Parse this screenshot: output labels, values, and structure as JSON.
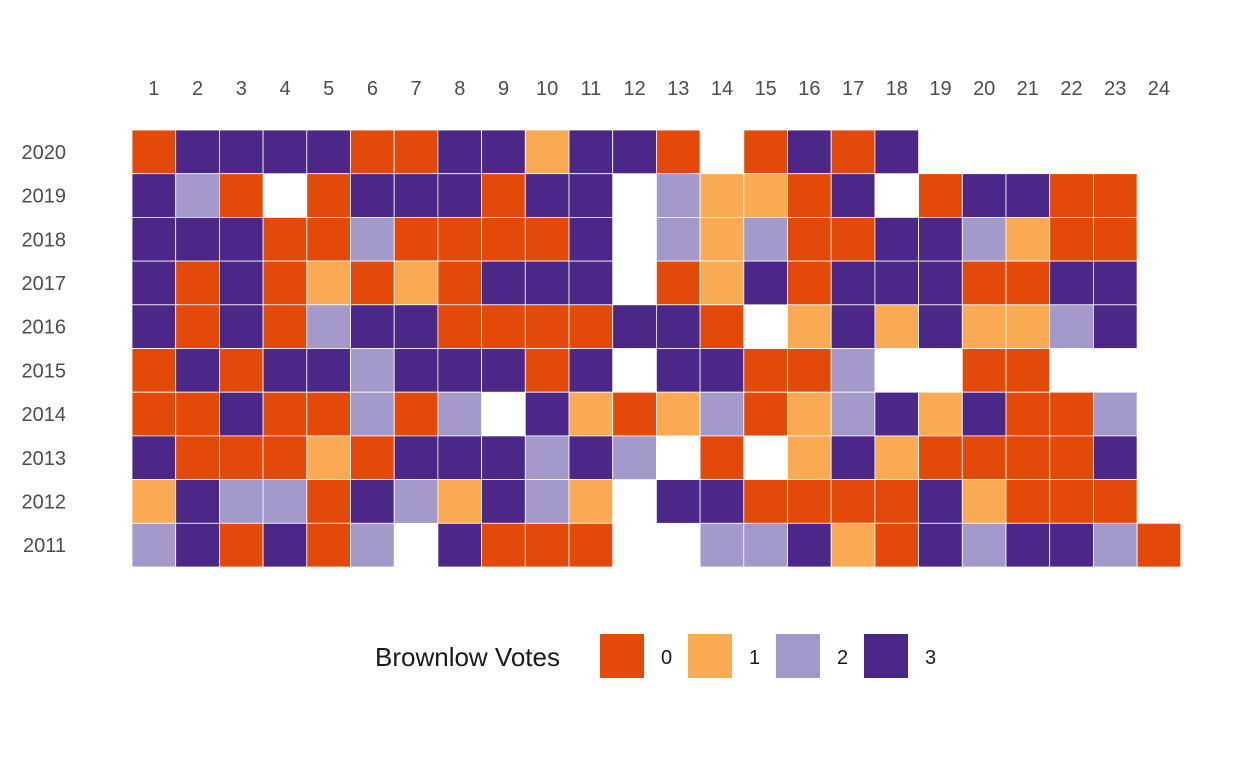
{
  "chart_data": {
    "type": "heatmap",
    "x_categories": [
      "1",
      "2",
      "3",
      "4",
      "5",
      "6",
      "7",
      "8",
      "9",
      "10",
      "11",
      "12",
      "13",
      "14",
      "15",
      "16",
      "17",
      "18",
      "19",
      "20",
      "21",
      "22",
      "23",
      "24"
    ],
    "y_categories": [
      "2020",
      "2019",
      "2018",
      "2017",
      "2016",
      "2015",
      "2014",
      "2013",
      "2012",
      "2011"
    ],
    "values": [
      [
        0,
        3,
        3,
        3,
        3,
        0,
        0,
        3,
        3,
        1,
        3,
        3,
        0,
        null,
        0,
        3,
        0,
        3,
        null,
        null,
        null,
        null,
        null,
        null
      ],
      [
        3,
        2,
        0,
        null,
        0,
        3,
        3,
        3,
        0,
        3,
        3,
        null,
        2,
        1,
        1,
        0,
        3,
        null,
        0,
        3,
        3,
        0,
        0,
        null
      ],
      [
        3,
        3,
        3,
        0,
        0,
        2,
        0,
        0,
        0,
        0,
        3,
        null,
        2,
        1,
        2,
        0,
        0,
        3,
        3,
        2,
        1,
        0,
        0,
        null
      ],
      [
        3,
        0,
        3,
        0,
        1,
        0,
        1,
        0,
        3,
        3,
        3,
        null,
        0,
        1,
        3,
        0,
        3,
        3,
        3,
        0,
        0,
        3,
        3,
        null
      ],
      [
        3,
        0,
        3,
        0,
        2,
        3,
        3,
        0,
        0,
        0,
        0,
        3,
        3,
        0,
        null,
        1,
        3,
        1,
        3,
        1,
        1,
        2,
        3,
        null
      ],
      [
        0,
        3,
        0,
        3,
        3,
        2,
        3,
        3,
        3,
        0,
        3,
        null,
        3,
        3,
        0,
        0,
        2,
        null,
        null,
        0,
        0,
        null,
        null,
        null
      ],
      [
        0,
        0,
        3,
        0,
        0,
        2,
        0,
        2,
        null,
        3,
        1,
        0,
        1,
        2,
        0,
        1,
        2,
        3,
        1,
        3,
        0,
        0,
        2,
        null
      ],
      [
        3,
        0,
        0,
        0,
        1,
        0,
        3,
        3,
        3,
        2,
        3,
        2,
        null,
        0,
        null,
        1,
        3,
        1,
        0,
        0,
        0,
        0,
        3,
        null
      ],
      [
        1,
        3,
        2,
        2,
        0,
        3,
        2,
        1,
        3,
        2,
        1,
        null,
        3,
        3,
        0,
        0,
        0,
        0,
        3,
        1,
        0,
        0,
        0,
        null
      ],
      [
        2,
        3,
        0,
        3,
        0,
        2,
        null,
        3,
        0,
        0,
        0,
        null,
        null,
        2,
        2,
        3,
        1,
        0,
        3,
        2,
        3,
        3,
        2,
        0
      ]
    ],
    "legend": {
      "title": "Brownlow Votes",
      "position": "bottom",
      "entries": [
        {
          "label": "0",
          "value": 0,
          "color": "#E34A09"
        },
        {
          "label": "1",
          "value": 1,
          "color": "#FBAA54"
        },
        {
          "label": "2",
          "value": 2,
          "color": "#A499CB"
        },
        {
          "label": "3",
          "value": 3,
          "color": "#4B2787"
        }
      ]
    },
    "x_axis_position": "top",
    "grid": false
  }
}
